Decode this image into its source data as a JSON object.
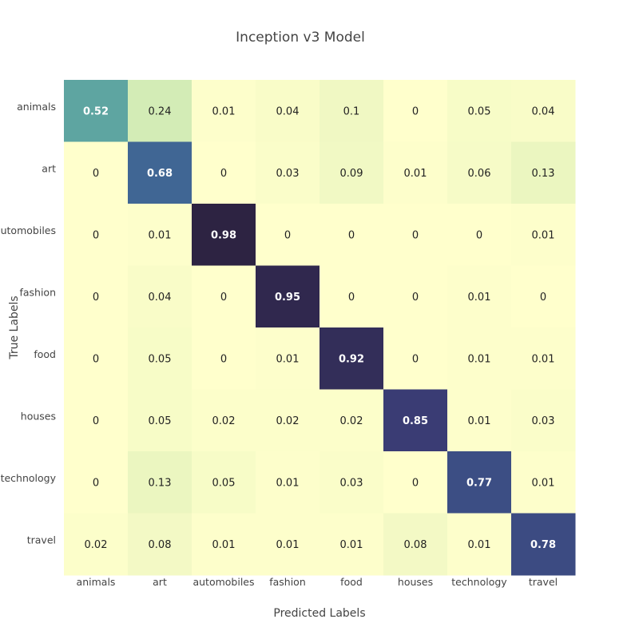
{
  "chart_data": {
    "type": "heatmap",
    "title": "Inception v3 Model",
    "xlabel": "Predicted Labels",
    "ylabel": "True Labels",
    "x_categories": [
      "animals",
      "art",
      "automobiles",
      "fashion",
      "food",
      "houses",
      "technology",
      "travel"
    ],
    "y_categories": [
      "animals",
      "art",
      "automobiles",
      "fashion",
      "food",
      "houses",
      "technology",
      "travel"
    ],
    "z": [
      [
        0.52,
        0.24,
        0.01,
        0.04,
        0.1,
        0.0,
        0.05,
        0.04
      ],
      [
        0.0,
        0.68,
        0.0,
        0.03,
        0.09,
        0.01,
        0.06,
        0.13
      ],
      [
        0.0,
        0.01,
        0.98,
        0.0,
        0.0,
        0.0,
        0.0,
        0.01
      ],
      [
        0.0,
        0.04,
        0.0,
        0.95,
        0.0,
        0.0,
        0.01,
        0.0
      ],
      [
        0.0,
        0.05,
        0.0,
        0.01,
        0.92,
        0.0,
        0.01,
        0.01
      ],
      [
        0.0,
        0.05,
        0.02,
        0.02,
        0.02,
        0.85,
        0.01,
        0.03
      ],
      [
        0.0,
        0.13,
        0.05,
        0.01,
        0.03,
        0.0,
        0.77,
        0.01
      ],
      [
        0.02,
        0.08,
        0.01,
        0.01,
        0.01,
        0.08,
        0.01,
        0.78
      ]
    ],
    "zlim": [
      0,
      1
    ],
    "colorscale": "YlGnBu-dark",
    "grid": false,
    "legend": "none",
    "colorbar": false
  },
  "colors": {
    "background": "#ffffff",
    "title_text": "#444444",
    "label_text": "#444444",
    "cell_text_dark": "#222222",
    "cell_text_light": "#ffffff",
    "colorscale_stops": [
      "#ffffcc",
      "#e9f5bf",
      "#c8e8b2",
      "#7fd1a3",
      "#4b8ca0",
      "#3d5a90",
      "#3a3a72",
      "#2b1f3a"
    ]
  }
}
